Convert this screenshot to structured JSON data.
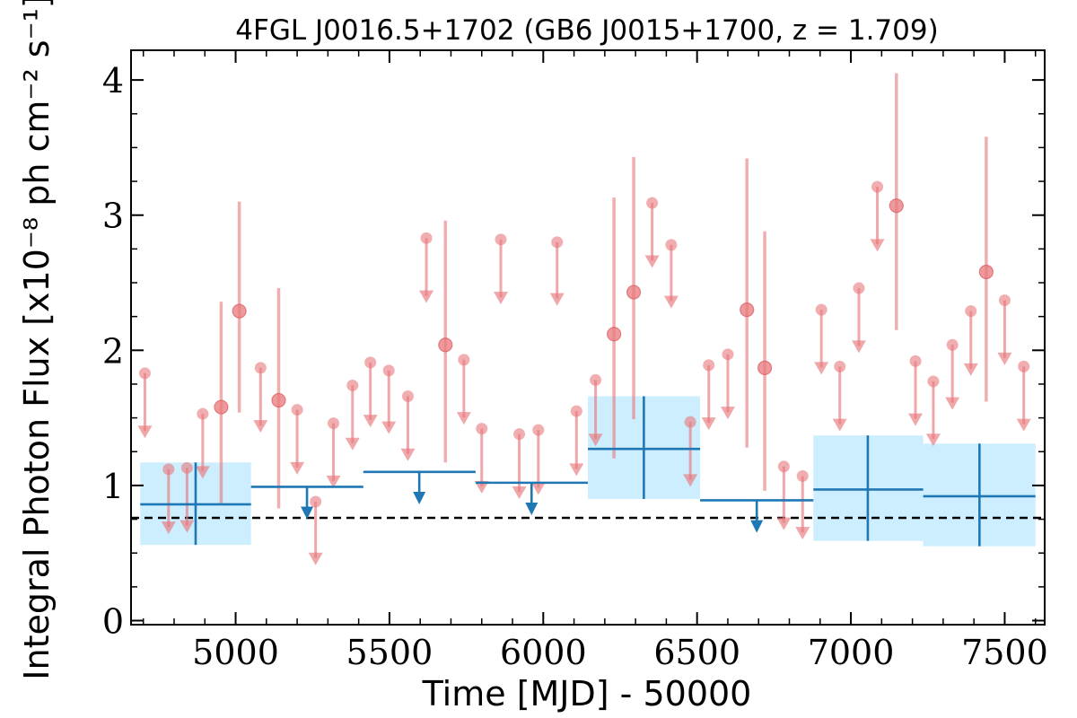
{
  "chart_data": {
    "type": "scatter",
    "title": "4FGL J0016.5+1702 (GB6 J0015+1700, z = 1.709)",
    "xlabel": "Time [MJD] - 50000",
    "ylabel": "Integral Photon Flux [x10⁻⁸ ph cm⁻² s⁻¹]",
    "xlim": [
      4660,
      7630
    ],
    "ylim": [
      -0.03,
      4.22
    ],
    "x_ticks": [
      5000,
      5500,
      6000,
      6500,
      7000,
      7500
    ],
    "y_ticks": [
      0,
      1,
      2,
      3,
      4
    ],
    "reference_line": 0.76,
    "colors": {
      "short_bins": "#e8787c",
      "long_bins": "#1f77b4",
      "band": "#cdeefe",
      "reference": "#000000"
    },
    "short_bins": {
      "detections": [
        {
          "x": 4953,
          "y": 1.58,
          "lo": 0.87,
          "hi": 2.36
        },
        {
          "x": 5012,
          "y": 2.29,
          "lo": 1.54,
          "hi": 3.1
        },
        {
          "x": 5140,
          "y": 1.63,
          "lo": 0.83,
          "hi": 2.46
        },
        {
          "x": 5682,
          "y": 2.04,
          "lo": 1.17,
          "hi": 2.96
        },
        {
          "x": 6230,
          "y": 2.12,
          "lo": 1.2,
          "hi": 3.13
        },
        {
          "x": 6294,
          "y": 2.43,
          "lo": 1.49,
          "hi": 3.43
        },
        {
          "x": 6662,
          "y": 2.3,
          "lo": 1.28,
          "hi": 3.42
        },
        {
          "x": 6720,
          "y": 1.87,
          "lo": 0.96,
          "hi": 2.88
        },
        {
          "x": 7148,
          "y": 3.07,
          "lo": 2.15,
          "hi": 4.05
        },
        {
          "x": 7440,
          "y": 2.58,
          "lo": 1.62,
          "hi": 3.58
        }
      ],
      "upper_limits": [
        {
          "x": 4705,
          "y": 1.83,
          "tip": 1.35
        },
        {
          "x": 4782,
          "y": 1.12,
          "tip": 0.64
        },
        {
          "x": 4842,
          "y": 1.13,
          "tip": 0.65
        },
        {
          "x": 4893,
          "y": 1.53,
          "tip": 1.05
        },
        {
          "x": 5081,
          "y": 1.87,
          "tip": 1.39
        },
        {
          "x": 5200,
          "y": 1.56,
          "tip": 1.08
        },
        {
          "x": 5260,
          "y": 0.88,
          "tip": 0.41
        },
        {
          "x": 5318,
          "y": 1.46,
          "tip": 0.98
        },
        {
          "x": 5380,
          "y": 1.74,
          "tip": 1.26
        },
        {
          "x": 5438,
          "y": 1.91,
          "tip": 1.43
        },
        {
          "x": 5498,
          "y": 1.85,
          "tip": 1.38
        },
        {
          "x": 5560,
          "y": 1.66,
          "tip": 1.18
        },
        {
          "x": 5620,
          "y": 2.83,
          "tip": 2.35
        },
        {
          "x": 5742,
          "y": 1.93,
          "tip": 1.45
        },
        {
          "x": 5800,
          "y": 1.42,
          "tip": 0.94
        },
        {
          "x": 5862,
          "y": 2.82,
          "tip": 2.34
        },
        {
          "x": 5922,
          "y": 1.38,
          "tip": 0.9
        },
        {
          "x": 5984,
          "y": 1.41,
          "tip": 0.93
        },
        {
          "x": 6045,
          "y": 2.8,
          "tip": 2.33
        },
        {
          "x": 6108,
          "y": 1.55,
          "tip": 1.07
        },
        {
          "x": 6170,
          "y": 1.78,
          "tip": 1.29
        },
        {
          "x": 6354,
          "y": 3.09,
          "tip": 2.61
        },
        {
          "x": 6416,
          "y": 2.78,
          "tip": 2.31
        },
        {
          "x": 6478,
          "y": 1.47,
          "tip": 0.99
        },
        {
          "x": 6538,
          "y": 1.89,
          "tip": 1.41
        },
        {
          "x": 6600,
          "y": 1.97,
          "tip": 1.49
        },
        {
          "x": 6782,
          "y": 1.14,
          "tip": 0.67
        },
        {
          "x": 6843,
          "y": 1.07,
          "tip": 0.6
        },
        {
          "x": 6904,
          "y": 2.3,
          "tip": 1.82
        },
        {
          "x": 6964,
          "y": 1.88,
          "tip": 1.4
        },
        {
          "x": 7026,
          "y": 2.46,
          "tip": 1.98
        },
        {
          "x": 7086,
          "y": 3.21,
          "tip": 2.73
        },
        {
          "x": 7210,
          "y": 1.92,
          "tip": 1.44
        },
        {
          "x": 7268,
          "y": 1.77,
          "tip": 1.29
        },
        {
          "x": 7330,
          "y": 2.04,
          "tip": 1.56
        },
        {
          "x": 7390,
          "y": 2.29,
          "tip": 1.81
        },
        {
          "x": 7500,
          "y": 2.37,
          "tip": 1.89
        },
        {
          "x": 7562,
          "y": 1.88,
          "tip": 1.4
        }
      ]
    },
    "long_bins": {
      "detections": [
        {
          "x0": 4690,
          "x1": 5050,
          "x": 4870,
          "y": 0.86,
          "lo": 0.56,
          "hi": 1.17
        },
        {
          "x0": 6145,
          "x1": 6510,
          "x": 6327,
          "y": 1.27,
          "lo": 0.9,
          "hi": 1.66
        },
        {
          "x0": 6878,
          "x1": 7235,
          "x": 7055,
          "y": 0.97,
          "lo": 0.59,
          "hi": 1.37
        },
        {
          "x0": 7235,
          "x1": 7600,
          "x": 7418,
          "y": 0.92,
          "lo": 0.55,
          "hi": 1.31
        }
      ],
      "upper_limits": [
        {
          "x0": 5050,
          "x1": 5415,
          "x": 5232,
          "y": 0.99,
          "tip": 0.75
        },
        {
          "x0": 5415,
          "x1": 5780,
          "x": 5597,
          "y": 1.1,
          "tip": 0.86
        },
        {
          "x0": 5780,
          "x1": 6145,
          "x": 5962,
          "y": 1.02,
          "tip": 0.78
        },
        {
          "x0": 6510,
          "x1": 6878,
          "x": 6694,
          "y": 0.89,
          "tip": 0.65
        }
      ]
    }
  }
}
